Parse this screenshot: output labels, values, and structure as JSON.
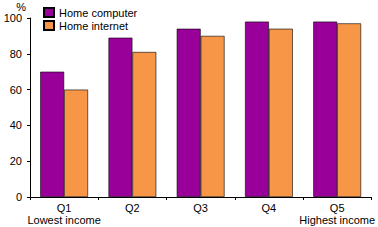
{
  "chart_data": {
    "type": "bar",
    "categories": [
      "Q1\nLowest income",
      "Q2",
      "Q3",
      "Q4",
      "Q5\nHighest income"
    ],
    "series": [
      {
        "name": "Home computer",
        "color": "#990099",
        "values": [
          70,
          89,
          94,
          98,
          98
        ]
      },
      {
        "name": "Home internet",
        "color": "#f79646",
        "values": [
          60,
          81,
          90,
          94,
          97
        ]
      }
    ],
    "y_label": "%",
    "ylim": [
      0,
      100
    ],
    "yticks": [
      0,
      20,
      40,
      60,
      80,
      100
    ],
    "grid": false,
    "legend": "top-left"
  }
}
